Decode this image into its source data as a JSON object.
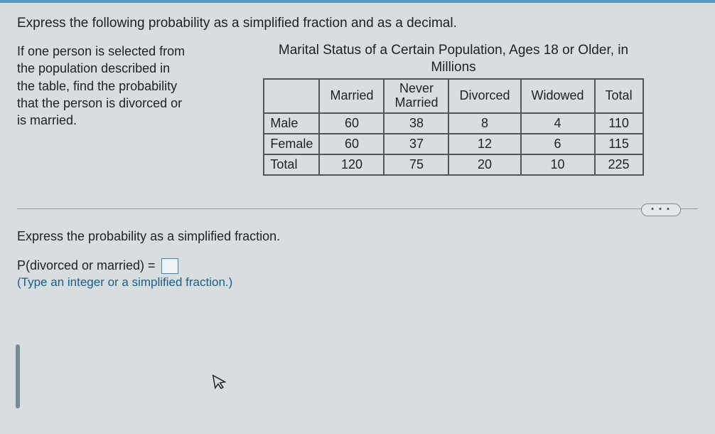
{
  "instruction": "Express the following probability as a simplified fraction and as a decimal.",
  "left_text": "If one person is selected from the population described in the table, find the probability that the person is divorced or is married.",
  "table": {
    "title": "Marital Status of a Certain Population, Ages 18 or Older, in",
    "subtitle": "Millions",
    "columns": [
      "",
      "Married",
      "Never Married",
      "Divorced",
      "Widowed",
      "Total"
    ],
    "rows": [
      {
        "label": "Male",
        "values": [
          "60",
          "38",
          "8",
          "4",
          "110"
        ]
      },
      {
        "label": "Female",
        "values": [
          "60",
          "37",
          "12",
          "6",
          "115"
        ]
      },
      {
        "label": "Total",
        "values": [
          "120",
          "75",
          "20",
          "10",
          "225"
        ]
      }
    ]
  },
  "question": {
    "prompt": "Express the probability as a simplified fraction.",
    "equation_lhs": "P(divorced or married) =",
    "hint": "(Type an integer or a simplified fraction.)"
  },
  "more_label": "• • •",
  "colors": {
    "background": "#d8dde0",
    "border_top": "#5a9bc4",
    "text": "#222222",
    "hint": "#1a5f8a",
    "table_border": "#555555"
  }
}
